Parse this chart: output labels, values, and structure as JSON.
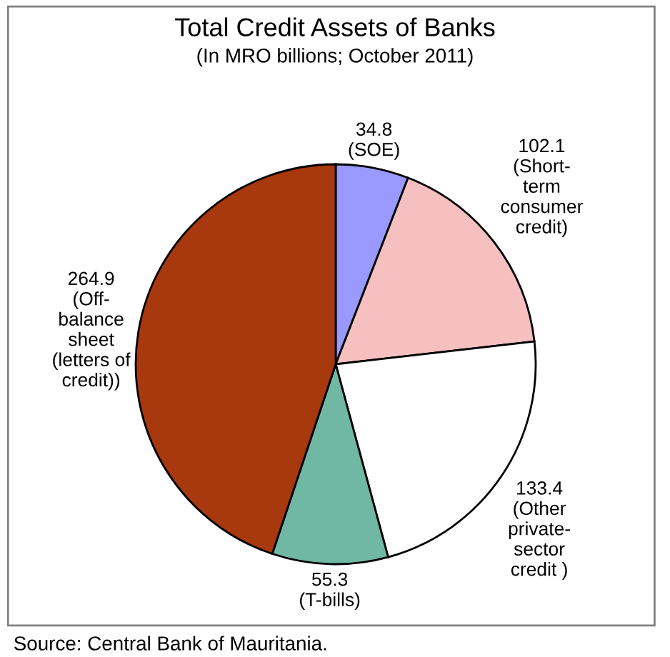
{
  "chart_data": {
    "type": "pie",
    "title": "Total Credit Assets of Banks",
    "subtitle": "(In MRO billions; October 2011)",
    "categories": [
      "(SOE)",
      "(Short-\nterm\nconsumer\ncredit)",
      "(Other\nprivate-\nsector\ncredit )",
      "(T-bills)",
      "(Off-\nbalance\nsheet\n(letters of\ncredit))"
    ],
    "values": [
      34.8,
      102.1,
      133.4,
      55.3,
      264.9
    ],
    "colors": [
      "#9999ff",
      "#f6c0c0",
      "#ffffff",
      "#70b8a4",
      "#a8380e"
    ],
    "data_labels": true,
    "annotations": [
      "Source: Central Bank of Mauritania."
    ]
  }
}
